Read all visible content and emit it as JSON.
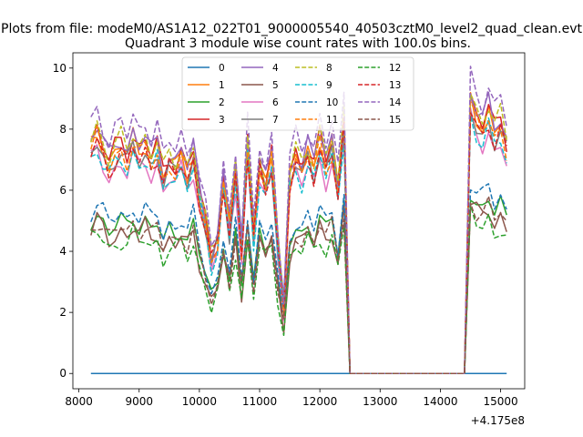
{
  "figure": {
    "suptitle": "Plots from file: modeM0/AS1A12_022T01_9000005540_40503cztM0_level2_quad_clean.evt",
    "title": "Quadrant 3 module wise count rates with 100.0s bins.",
    "x_offset_label": "+4.175e8"
  },
  "chart_data": {
    "type": "line",
    "title": "Quadrant 3 module wise count rates with 100.0s bins.",
    "xlabel": "",
    "ylabel": "",
    "x_offset": 417500000,
    "xlim": [
      7900,
      15400
    ],
    "ylim": [
      -0.5,
      10.5
    ],
    "xticks": [
      8000,
      9000,
      10000,
      11000,
      12000,
      13000,
      14000,
      15000
    ],
    "yticks": [
      0,
      2,
      4,
      6,
      8,
      10
    ],
    "xtick_labels": [
      "8000",
      "9000",
      "10000",
      "11000",
      "12000",
      "13000",
      "14000",
      "15000"
    ],
    "ytick_labels": [
      "0",
      "2",
      "4",
      "6",
      "8",
      "10"
    ],
    "grid": false,
    "legend_position": "top-center",
    "legend_columns": 4,
    "series": [
      {
        "name": "0",
        "color": "#1f77b4",
        "dash": "solid",
        "base": 0.0
      },
      {
        "name": "1",
        "color": "#ff7f0e",
        "dash": "solid",
        "base": 7.5
      },
      {
        "name": "2",
        "color": "#2ca02c",
        "dash": "solid",
        "base": 5.0
      },
      {
        "name": "3",
        "color": "#d62728",
        "dash": "solid",
        "base": 7.6
      },
      {
        "name": "4",
        "color": "#9467bd",
        "dash": "solid",
        "base": 7.7
      },
      {
        "name": "5",
        "color": "#8c564b",
        "dash": "solid",
        "base": 4.7
      },
      {
        "name": "6",
        "color": "#e377c2",
        "dash": "solid",
        "base": 6.9
      },
      {
        "name": "7",
        "color": "#7f7f7f",
        "dash": "solid",
        "base": 7.2
      },
      {
        "name": "8",
        "color": "#bcbd22",
        "dash": "dashed",
        "base": 7.7
      },
      {
        "name": "9",
        "color": "#17becf",
        "dash": "dashed",
        "base": 7.0
      },
      {
        "name": "10",
        "color": "#1f77b4",
        "dash": "dashed",
        "base": 5.3
      },
      {
        "name": "11",
        "color": "#ff7f0e",
        "dash": "dashed",
        "base": 7.3
      },
      {
        "name": "12",
        "color": "#2ca02c",
        "dash": "dashed",
        "base": 4.4
      },
      {
        "name": "13",
        "color": "#d62728",
        "dash": "dashed",
        "base": 7.2
      },
      {
        "name": "14",
        "color": "#9467bd",
        "dash": "dashed",
        "base": 8.2
      },
      {
        "name": "15",
        "color": "#8c564b",
        "dash": "dashed",
        "base": 4.8
      }
    ],
    "x": [
      8200,
      8300,
      8400,
      8500,
      8600,
      8700,
      8800,
      8900,
      9000,
      9100,
      9200,
      9300,
      9400,
      9500,
      9600,
      9700,
      9800,
      9900,
      10000,
      10100,
      10200,
      10300,
      10400,
      10500,
      10600,
      10700,
      10800,
      10900,
      11000,
      11100,
      11200,
      11300,
      11400,
      11500,
      11600,
      11700,
      11800,
      11900,
      12000,
      12100,
      12200,
      12300,
      12400,
      12500,
      12600,
      12700,
      12800,
      12900,
      13000,
      13100,
      13200,
      13300,
      13400,
      13500,
      13600,
      13700,
      13800,
      13900,
      14000,
      14100,
      14200,
      14300,
      14400,
      14500,
      14600,
      14700,
      14800,
      14900,
      15000,
      15100
    ],
    "shape": [
      1.0,
      1.06,
      0.99,
      0.92,
      0.97,
      1.0,
      0.95,
      1.03,
      0.97,
      1.01,
      0.94,
      0.99,
      0.86,
      0.93,
      0.9,
      0.96,
      0.88,
      0.97,
      0.78,
      0.66,
      0.5,
      0.58,
      0.85,
      0.64,
      0.9,
      0.55,
      1.0,
      0.6,
      0.92,
      0.83,
      0.95,
      0.58,
      0.3,
      0.85,
      0.95,
      0.9,
      0.98,
      0.9,
      1.03,
      0.92,
      1.0,
      0.8,
      1.12,
      0,
      0,
      0,
      0,
      0,
      0,
      0,
      0,
      0,
      0,
      0,
      0,
      0,
      0,
      0,
      0,
      0,
      0,
      0,
      0,
      1.2,
      1.12,
      1.08,
      1.15,
      1.05,
      1.1,
      1.0
    ]
  }
}
